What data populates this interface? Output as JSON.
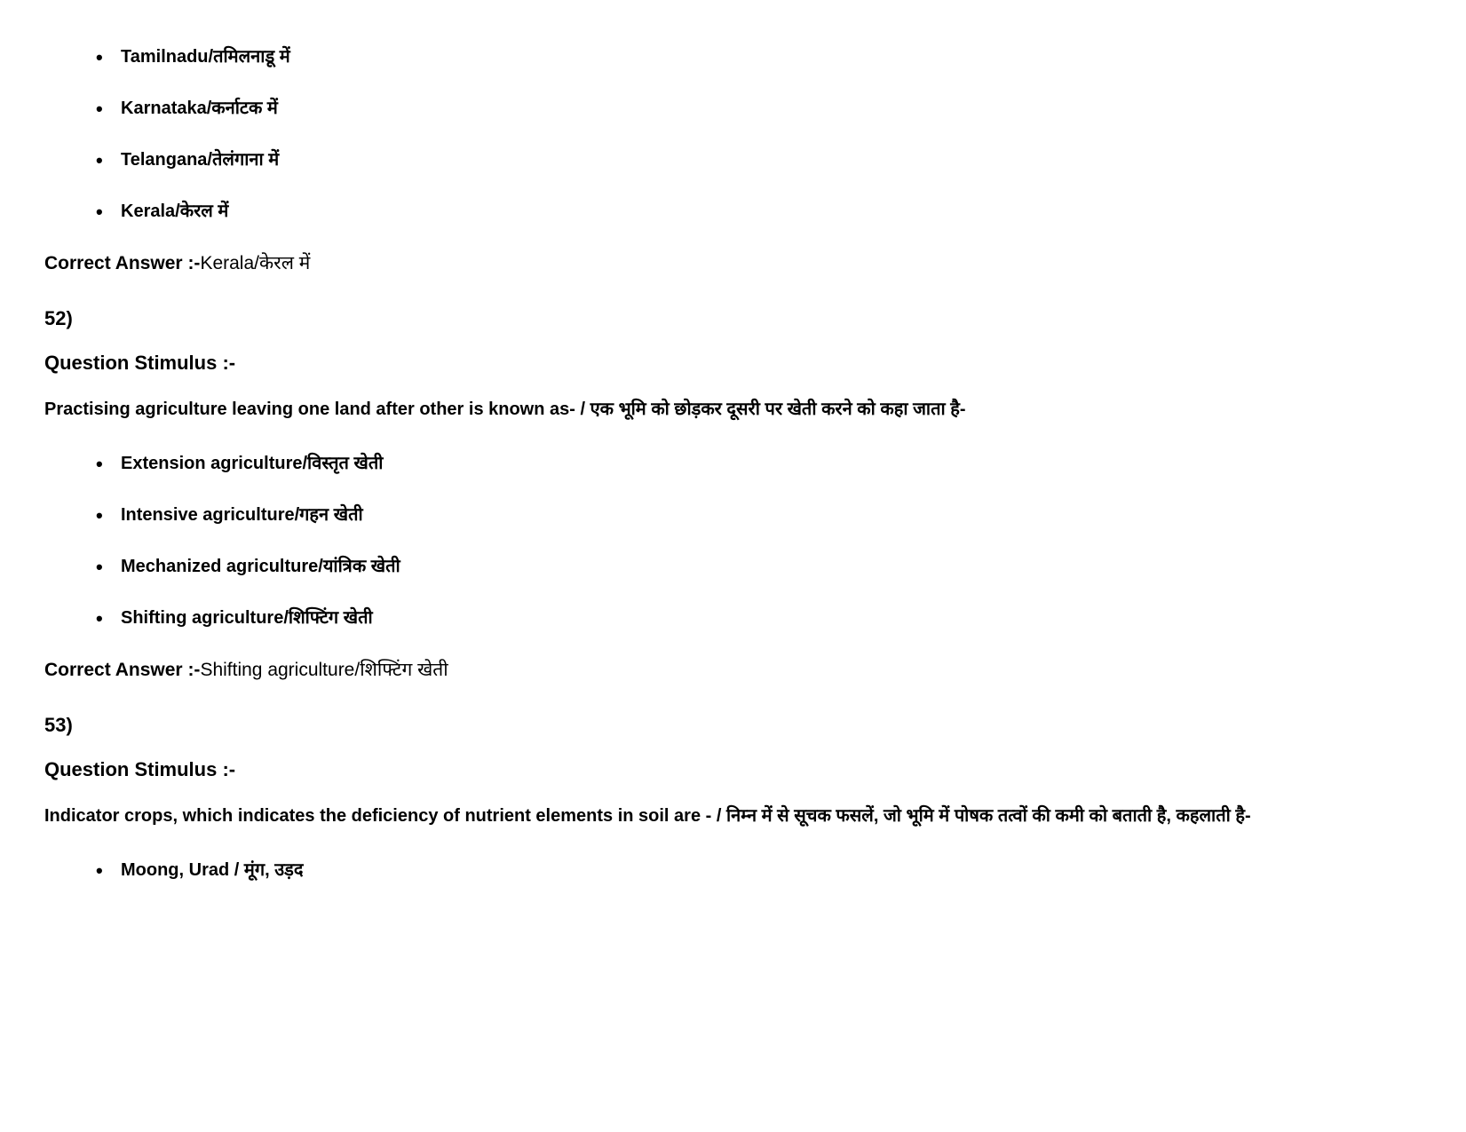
{
  "q51": {
    "options": [
      "Tamilnadu/तमिलनाडू में",
      "Karnataka/कर्नाटक में",
      "Telangana/तेलंगाना में",
      "Kerala/केरल में"
    ],
    "correct_label": "Correct Answer :-",
    "correct_value": "Kerala/केरल में"
  },
  "q52": {
    "number": "52)",
    "stimulus_label": "Question Stimulus :-",
    "text": "Practising agriculture leaving one land after other is known as- / एक भूमि को छोड़कर दूसरी पर खेती करने को कहा जाता है-",
    "options": [
      "Extension agriculture/विस्तृत खेती",
      "Intensive agriculture/गहन खेती",
      "Mechanized agriculture/यांत्रिक खेती",
      "Shifting agriculture/शिफ्टिंग खेती"
    ],
    "correct_label": "Correct Answer :-",
    "correct_value": "Shifting agriculture/शिफ्टिंग खेती"
  },
  "q53": {
    "number": "53)",
    "stimulus_label": "Question Stimulus :-",
    "text": "Indicator crops, which indicates the deficiency of nutrient elements in soil are - / निम्न में से सूचक फसलें, जो भूमि में पोषक तत्वों की कमी को बताती है, कहलाती है-",
    "options": [
      "Moong, Urad / मूंग, उड़द"
    ]
  },
  "styles": {
    "background_color": "#ffffff",
    "text_color": "#000000",
    "font_family": "Arial, Helvetica, sans-serif",
    "option_fontsize": 20,
    "heading_fontsize": 22,
    "body_fontsize": 20
  }
}
